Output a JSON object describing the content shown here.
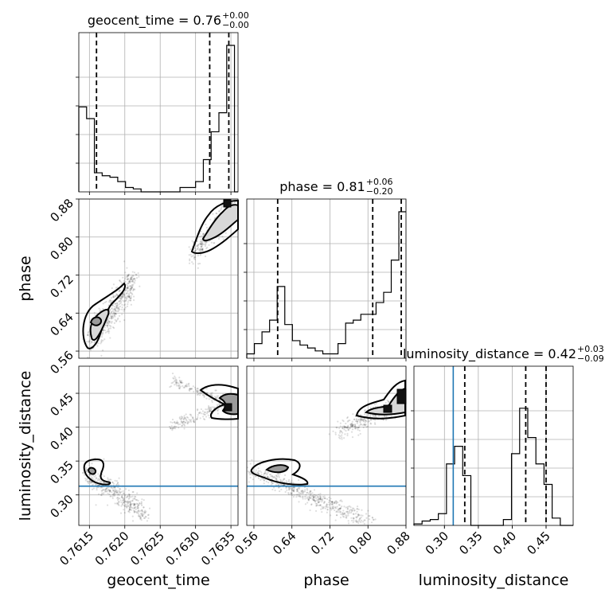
{
  "chart_data": {
    "type": "corner",
    "parameters": [
      "geocent_time",
      "phase",
      "luminosity_distance"
    ],
    "axis_labels": [
      "geocent_time",
      "phase",
      "luminosity_distance"
    ],
    "ranges": {
      "geocent_time": [
        0.76135,
        0.7636
      ],
      "phase": [
        0.545,
        0.88
      ],
      "luminosity_distance": [
        0.255,
        0.49
      ]
    },
    "ticks": {
      "geocent_time": {
        "values": [
          0.7615,
          0.762,
          0.7625,
          0.763,
          0.7635
        ],
        "labels": [
          "0.7615",
          "0.7620",
          "0.7625",
          "0.7630",
          "0.7635"
        ]
      },
      "phase": {
        "values": [
          0.56,
          0.64,
          0.72,
          0.8,
          0.88
        ],
        "labels": [
          "0.56",
          "0.64",
          "0.72",
          "0.80",
          "0.88"
        ]
      },
      "luminosity_distance": {
        "values": [
          0.3,
          0.35,
          0.4,
          0.45
        ],
        "labels": [
          "0.30",
          "0.35",
          "0.40",
          "0.45"
        ]
      }
    },
    "titles": [
      {
        "parameter": "geocent_time",
        "prefix": "geocent_time = 0.76",
        "plus": "+0.00",
        "minus": "−0.00"
      },
      {
        "parameter": "phase",
        "prefix": "phase = 0.81",
        "plus": "+0.06",
        "minus": "−0.20"
      },
      {
        "parameter": "luminosity_distance",
        "prefix": "luminosity_distance = 0.42",
        "plus": "+0.03",
        "minus": "−0.09"
      }
    ],
    "histograms": [
      {
        "parameter": "geocent_time",
        "edges": [
          0.76135,
          0.76146,
          0.76157,
          0.76168,
          0.76179,
          0.7619,
          0.76201,
          0.76212,
          0.76223,
          0.76234,
          0.76245,
          0.76256,
          0.76267,
          0.76278,
          0.76289,
          0.763,
          0.76311,
          0.76322,
          0.76333,
          0.76344,
          0.76355,
          0.7636
        ],
        "counts": [
          0.58,
          0.5,
          0.13,
          0.11,
          0.1,
          0.07,
          0.03,
          0.02,
          0.0,
          0.0,
          0.0,
          0.0,
          0.0,
          0.03,
          0.03,
          0.07,
          0.22,
          0.41,
          0.54,
          1.0,
          0.0
        ],
        "quantiles": [
          0.7616,
          0.7632,
          0.76347
        ]
      },
      {
        "parameter": "phase",
        "edges": [
          0.545,
          0.561,
          0.577,
          0.593,
          0.609,
          0.625,
          0.641,
          0.657,
          0.673,
          0.689,
          0.705,
          0.721,
          0.737,
          0.753,
          0.769,
          0.785,
          0.801,
          0.817,
          0.833,
          0.849,
          0.865,
          0.88
        ],
        "counts": [
          0.03,
          0.1,
          0.18,
          0.26,
          0.49,
          0.23,
          0.12,
          0.09,
          0.07,
          0.05,
          0.03,
          0.03,
          0.1,
          0.24,
          0.26,
          0.3,
          0.3,
          0.38,
          0.45,
          0.67,
          1.0
        ],
        "quantiles": [
          0.61,
          0.81,
          0.87
        ]
      },
      {
        "parameter": "luminosity_distance",
        "edges": [
          0.255,
          0.267,
          0.279,
          0.291,
          0.303,
          0.315,
          0.327,
          0.339,
          0.351,
          0.363,
          0.375,
          0.387,
          0.399,
          0.411,
          0.423,
          0.435,
          0.447,
          0.459,
          0.471,
          0.483,
          0.49
        ],
        "counts": [
          0.01,
          0.03,
          0.04,
          0.08,
          0.42,
          0.54,
          0.34,
          0.0,
          0.0,
          0.0,
          0.0,
          0.04,
          0.49,
          0.8,
          0.6,
          0.42,
          0.28,
          0.05,
          0.0,
          0.0
        ],
        "quantiles": [
          0.33,
          0.42,
          0.45
        ],
        "truth": 0.313
      }
    ],
    "truth": {
      "luminosity_distance": 0.313
    },
    "grid": true
  }
}
